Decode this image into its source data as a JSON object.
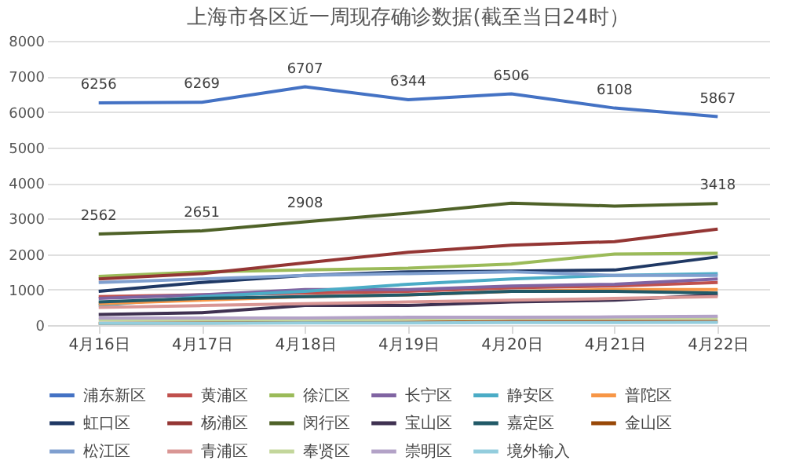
{
  "chart_data": {
    "type": "line",
    "title": "上海市各区近一周现存确诊数据(截至当日24时）",
    "categories": [
      "4月16日",
      "4月17日",
      "4月18日",
      "4月19日",
      "4月20日",
      "4月21日",
      "4月22日"
    ],
    "ylim": [
      0,
      8000
    ],
    "yticks": [
      0,
      1000,
      2000,
      3000,
      4000,
      5000,
      6000,
      7000,
      8000
    ],
    "grid": "y",
    "legend": "bottom",
    "marker": "none",
    "line_style": "solid",
    "series": [
      {
        "name": "浦东新区",
        "color": "#4472c4",
        "values": [
          6256,
          6269,
          6707,
          6344,
          6506,
          6108,
          5867
        ],
        "value_labels": [
          "6256",
          "6269",
          "6707",
          "6344",
          "6506",
          "6108",
          "5867"
        ]
      },
      {
        "name": "黄浦区",
        "color": "#c0504d",
        "values": [
          800,
          850,
          900,
          950,
          1050,
          1100,
          1200
        ]
      },
      {
        "name": "徐汇区",
        "color": "#9bbb59",
        "values": [
          1370,
          1500,
          1550,
          1600,
          1720,
          2000,
          2020
        ]
      },
      {
        "name": "长宁区",
        "color": "#8064a2",
        "values": [
          750,
          850,
          1000,
          1000,
          1100,
          1150,
          1300
        ]
      },
      {
        "name": "静安区",
        "color": "#4bacc6",
        "values": [
          550,
          800,
          950,
          1150,
          1300,
          1400,
          1450
        ]
      },
      {
        "name": "普陀区",
        "color": "#f79646",
        "values": [
          600,
          700,
          800,
          850,
          950,
          1000,
          1000
        ]
      },
      {
        "name": "虹口区",
        "color": "#1f3864",
        "values": [
          950,
          1200,
          1400,
          1500,
          1520,
          1550,
          1920
        ]
      },
      {
        "name": "杨浦区",
        "color": "#943634",
        "values": [
          1300,
          1450,
          1750,
          2050,
          2250,
          2350,
          2700
        ]
      },
      {
        "name": "闵行区",
        "color": "#4f6228",
        "values": [
          2562,
          2651,
          2908,
          3150,
          3430,
          3350,
          3418
        ],
        "value_labels": [
          "2562",
          "2651",
          "2908",
          null,
          null,
          null,
          "3418"
        ]
      },
      {
        "name": "宝山区",
        "color": "#3f3151",
        "values": [
          300,
          350,
          550,
          550,
          650,
          700,
          850
        ]
      },
      {
        "name": "嘉定区",
        "color": "#215967",
        "values": [
          650,
          750,
          800,
          850,
          950,
          950,
          900
        ]
      },
      {
        "name": "金山区",
        "color": "#984807",
        "values": [
          50,
          60,
          70,
          80,
          100,
          100,
          100
        ]
      },
      {
        "name": "松江区",
        "color": "#7f9fcf",
        "values": [
          1200,
          1300,
          1400,
          1450,
          1500,
          1400,
          1400
        ]
      },
      {
        "name": "青浦区",
        "color": "#d99694",
        "values": [
          500,
          550,
          600,
          650,
          700,
          750,
          800
        ]
      },
      {
        "name": "奉贤区",
        "color": "#c3d69b",
        "values": [
          150,
          150,
          150,
          170,
          200,
          200,
          200
        ]
      },
      {
        "name": "崇明区",
        "color": "#b3a2c7",
        "values": [
          200,
          200,
          200,
          220,
          220,
          230,
          250
        ]
      },
      {
        "name": "境外输入",
        "color": "#93cddd",
        "values": [
          50,
          50,
          60,
          60,
          70,
          70,
          80
        ]
      }
    ]
  }
}
